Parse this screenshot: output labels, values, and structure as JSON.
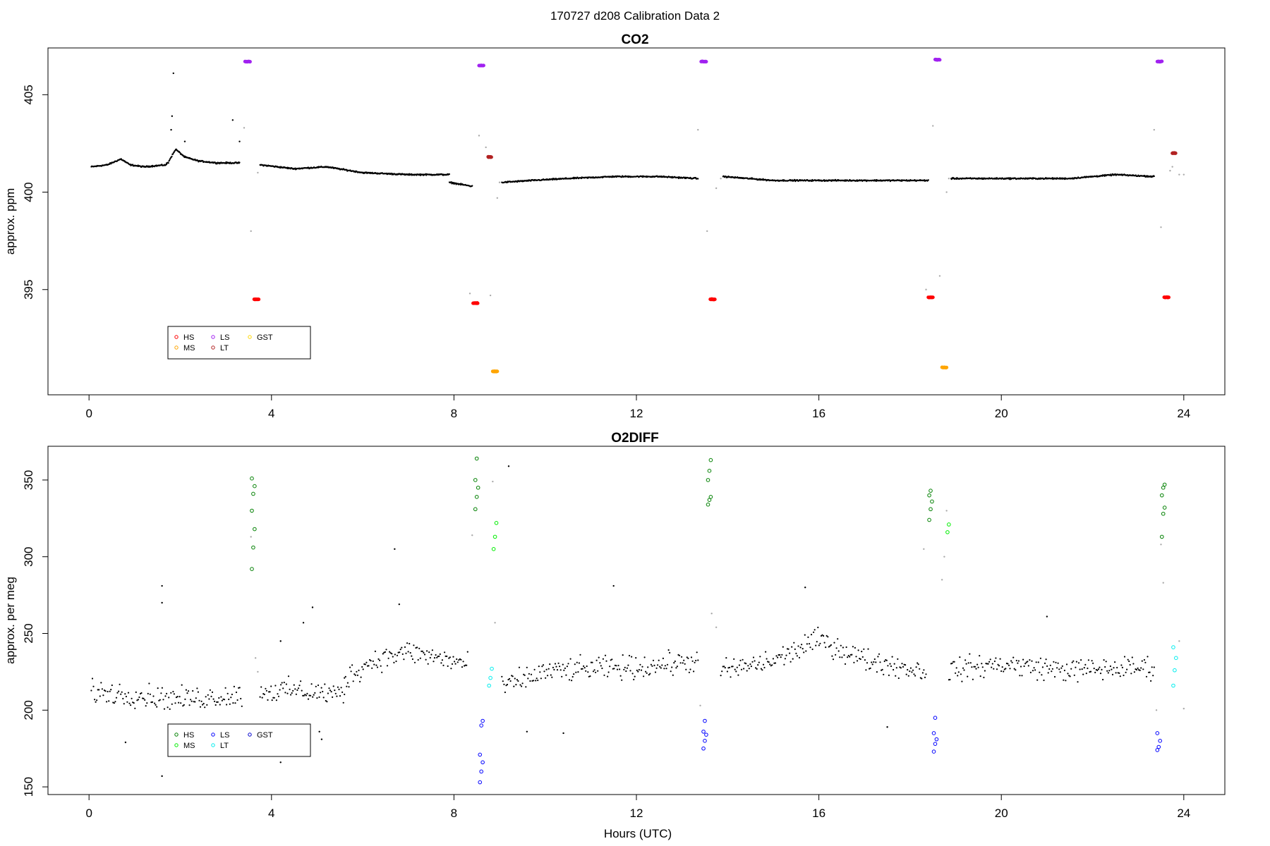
{
  "figure_title": "170727   d208   Calibration Data 2",
  "colors": {
    "data": "#000000",
    "flagged": "#aaaaaa",
    "co2_HS": "#ff0000",
    "co2_MS": "#ffa500",
    "co2_LS": "#a020f0",
    "co2_LT": "#b22222",
    "co2_GST": "#ffd700",
    "o2_HS": "#008000",
    "o2_MS": "#00ee00",
    "o2_LS": "#0000ff",
    "o2_LT": "#00eeee",
    "o2_GST": "#0000cd"
  },
  "chart_data": [
    {
      "type": "scatter",
      "id": "co2",
      "title": "CO2",
      "xlabel": "",
      "ylabel": "approx. ppm",
      "xlim": [
        -0.9,
        24.9
      ],
      "ylim": [
        389.6,
        407.4
      ],
      "xticks": [
        0,
        4,
        8,
        12,
        16,
        20,
        24
      ],
      "yticks": [
        395,
        400,
        405
      ],
      "legend": {
        "placement": "bottom-left",
        "entries": [
          {
            "label": "HS",
            "color": "#ff0000"
          },
          {
            "label": "MS",
            "color": "#ffa500"
          },
          {
            "label": "LS",
            "color": "#a020f0"
          },
          {
            "label": "LT",
            "color": "#b22222"
          },
          {
            "label": "GST",
            "color": "#ffd700"
          }
        ]
      },
      "baseline_segments": [
        {
          "range": [
            0.05,
            1.7
          ],
          "points": [
            [
              0.05,
              401.3
            ],
            [
              0.4,
              401.4
            ],
            [
              0.7,
              401.7
            ],
            [
              0.9,
              401.4
            ],
            [
              1.2,
              401.3
            ],
            [
              1.7,
              401.4
            ]
          ]
        },
        {
          "range": [
            1.7,
            3.3
          ],
          "points": [
            [
              1.75,
              401.6
            ],
            [
              1.9,
              402.2
            ],
            [
              2.1,
              401.8
            ],
            [
              2.4,
              401.6
            ],
            [
              2.8,
              401.5
            ],
            [
              3.3,
              401.5
            ]
          ]
        },
        {
          "range": [
            3.75,
            7.9
          ],
          "points": [
            [
              3.75,
              401.4
            ],
            [
              4.5,
              401.2
            ],
            [
              5.2,
              401.3
            ],
            [
              6.0,
              401.0
            ],
            [
              7.0,
              400.9
            ],
            [
              7.9,
              400.9
            ]
          ]
        },
        {
          "range": [
            7.9,
            8.4
          ],
          "points": [
            [
              7.9,
              400.5
            ],
            [
              8.4,
              400.3
            ]
          ]
        },
        {
          "range": [
            9.05,
            13.35
          ],
          "points": [
            [
              9.05,
              400.5
            ],
            [
              9.7,
              400.6
            ],
            [
              10.5,
              400.7
            ],
            [
              11.5,
              400.8
            ],
            [
              12.5,
              400.8
            ],
            [
              13.35,
              400.7
            ]
          ]
        },
        {
          "range": [
            13.9,
            18.4
          ],
          "points": [
            [
              13.9,
              400.8
            ],
            [
              15.0,
              400.6
            ],
            [
              16.5,
              400.6
            ],
            [
              17.5,
              400.6
            ],
            [
              18.4,
              400.6
            ]
          ]
        },
        {
          "range": [
            18.9,
            23.35
          ],
          "points": [
            [
              18.9,
              400.7
            ],
            [
              20.0,
              400.7
            ],
            [
              21.5,
              400.7
            ],
            [
              22.5,
              400.9
            ],
            [
              23.35,
              400.8
            ]
          ]
        }
      ],
      "calibration_points": [
        {
          "gas": "LS",
          "x_range": [
            3.42,
            3.53
          ],
          "y": 406.7
        },
        {
          "gas": "HS",
          "x_range": [
            3.62,
            3.72
          ],
          "y": 394.5
        },
        {
          "gas": "LS",
          "x_range": [
            8.55,
            8.65
          ],
          "y": 406.5
        },
        {
          "gas": "HS",
          "x_range": [
            8.42,
            8.52
          ],
          "y": 394.3
        },
        {
          "gas": "LT",
          "x_range": [
            8.75,
            8.82
          ],
          "y": 401.8
        },
        {
          "gas": "MS",
          "x_range": [
            8.85,
            8.95
          ],
          "y": 390.8
        },
        {
          "gas": "LS",
          "x_range": [
            13.42,
            13.53
          ],
          "y": 406.7
        },
        {
          "gas": "HS",
          "x_range": [
            13.62,
            13.72
          ],
          "y": 394.5
        },
        {
          "gas": "LS",
          "x_range": [
            18.55,
            18.65
          ],
          "y": 406.8
        },
        {
          "gas": "HS",
          "x_range": [
            18.4,
            18.5
          ],
          "y": 394.6
        },
        {
          "gas": "MS",
          "x_range": [
            18.7,
            18.8
          ],
          "y": 391.0
        },
        {
          "gas": "LS",
          "x_range": [
            23.42,
            23.52
          ],
          "y": 406.7
        },
        {
          "gas": "HS",
          "x_range": [
            23.57,
            23.67
          ],
          "y": 394.6
        },
        {
          "gas": "LT",
          "x_range": [
            23.75,
            23.82
          ],
          "y": 402.0
        }
      ],
      "outliers": [
        {
          "x": 1.85,
          "y": 406.1,
          "flagged": false
        },
        {
          "x": 1.82,
          "y": 403.9,
          "flagged": false
        },
        {
          "x": 1.8,
          "y": 403.2,
          "flagged": false
        },
        {
          "x": 2.1,
          "y": 402.6,
          "flagged": false
        },
        {
          "x": 3.15,
          "y": 403.7,
          "flagged": false
        },
        {
          "x": 3.3,
          "y": 402.6,
          "flagged": false
        },
        {
          "x": 3.4,
          "y": 403.3,
          "flagged": true
        },
        {
          "x": 3.55,
          "y": 398.0,
          "flagged": true
        },
        {
          "x": 3.7,
          "y": 401.0,
          "flagged": true
        },
        {
          "x": 8.35,
          "y": 394.8,
          "flagged": true
        },
        {
          "x": 8.55,
          "y": 402.9,
          "flagged": true
        },
        {
          "x": 8.7,
          "y": 402.3,
          "flagged": true
        },
        {
          "x": 8.8,
          "y": 394.7,
          "flagged": true
        },
        {
          "x": 8.95,
          "y": 399.7,
          "flagged": true
        },
        {
          "x": 9.0,
          "y": 400.5,
          "flagged": true
        },
        {
          "x": 13.35,
          "y": 403.2,
          "flagged": true
        },
        {
          "x": 13.55,
          "y": 398.0,
          "flagged": true
        },
        {
          "x": 13.75,
          "y": 400.2,
          "flagged": true
        },
        {
          "x": 13.85,
          "y": 400.7,
          "flagged": true
        },
        {
          "x": 18.35,
          "y": 395.0,
          "flagged": true
        },
        {
          "x": 18.5,
          "y": 403.4,
          "flagged": true
        },
        {
          "x": 18.65,
          "y": 395.7,
          "flagged": true
        },
        {
          "x": 18.8,
          "y": 400.0,
          "flagged": true
        },
        {
          "x": 18.85,
          "y": 400.7,
          "flagged": true
        },
        {
          "x": 23.35,
          "y": 403.2,
          "flagged": true
        },
        {
          "x": 23.5,
          "y": 398.2,
          "flagged": true
        },
        {
          "x": 23.7,
          "y": 401.1,
          "flagged": true
        },
        {
          "x": 23.75,
          "y": 401.3,
          "flagged": true
        },
        {
          "x": 23.9,
          "y": 400.9,
          "flagged": true
        },
        {
          "x": 24.0,
          "y": 400.9,
          "flagged": true
        }
      ]
    },
    {
      "type": "scatter",
      "id": "o2diff",
      "title": "O2DIFF",
      "xlabel": "Hours (UTC)",
      "ylabel": "approx. per meg",
      "xlim": [
        -0.9,
        24.9
      ],
      "ylim": [
        145,
        372
      ],
      "xticks": [
        0,
        4,
        8,
        12,
        16,
        20,
        24
      ],
      "yticks": [
        150,
        200,
        250,
        300,
        350
      ],
      "legend": {
        "placement": "bottom-left",
        "entries": [
          {
            "label": "HS",
            "color": "#008000"
          },
          {
            "label": "MS",
            "color": "#00ee00"
          },
          {
            "label": "LS",
            "color": "#0000ff"
          },
          {
            "label": "LT",
            "color": "#00eeee"
          },
          {
            "label": "GST",
            "color": "#0000cd"
          }
        ]
      },
      "baseline_segments": [
        {
          "range": [
            0.05,
            3.35
          ],
          "points": [
            [
              0.05,
              212
            ],
            [
              1.0,
              210
            ],
            [
              2.0,
              207
            ],
            [
              3.35,
              210
            ]
          ]
        },
        {
          "range": [
            3.75,
            5.6
          ],
          "points": [
            [
              3.75,
              212
            ],
            [
              4.5,
              213
            ],
            [
              5.6,
              210
            ]
          ]
        },
        {
          "range": [
            5.6,
            8.3
          ],
          "points": [
            [
              5.6,
              220
            ],
            [
              6.2,
              232
            ],
            [
              7.0,
              238
            ],
            [
              8.3,
              230
            ]
          ]
        },
        {
          "range": [
            9.05,
            13.35
          ],
          "points": [
            [
              9.05,
              215
            ],
            [
              10.0,
              225
            ],
            [
              11.0,
              227
            ],
            [
              12.0,
              228
            ],
            [
              13.35,
              232
            ]
          ]
        },
        {
          "range": [
            13.85,
            18.35
          ],
          "points": [
            [
              13.85,
              225
            ],
            [
              15.0,
              232
            ],
            [
              16.0,
              246
            ],
            [
              17.0,
              233
            ],
            [
              18.35,
              225
            ]
          ]
        },
        {
          "range": [
            18.85,
            23.35
          ],
          "points": [
            [
              18.85,
              226
            ],
            [
              20.0,
              230
            ],
            [
              21.5,
              226
            ],
            [
              23.35,
              228
            ]
          ]
        }
      ],
      "calibration_points": [
        {
          "gas": "HS",
          "x": 3.6,
          "ys": [
            292,
            306,
            318,
            330,
            341,
            346,
            351
          ]
        },
        {
          "gas": "HS",
          "x": 8.5,
          "ys": [
            331,
            339,
            345,
            350,
            364
          ]
        },
        {
          "gas": "MS",
          "x": 8.9,
          "ys": [
            305,
            313,
            322
          ]
        },
        {
          "gas": "LS",
          "x": 8.6,
          "ys": [
            153,
            160,
            166,
            171,
            190,
            193
          ]
        },
        {
          "gas": "LT",
          "x": 8.8,
          "ys": [
            216,
            221,
            227
          ]
        },
        {
          "gas": "HS",
          "x": 13.6,
          "ys": [
            334,
            337,
            339,
            350,
            356,
            363
          ]
        },
        {
          "gas": "LS",
          "x": 13.5,
          "ys": [
            175,
            180,
            184,
            186,
            193
          ]
        },
        {
          "gas": "HS",
          "x": 18.45,
          "ys": [
            324,
            331,
            336,
            340,
            343
          ]
        },
        {
          "gas": "MS",
          "x": 18.85,
          "ys": [
            316,
            321
          ]
        },
        {
          "gas": "LS",
          "x": 18.55,
          "ys": [
            173,
            178,
            181,
            185,
            195
          ]
        },
        {
          "gas": "HS",
          "x": 23.55,
          "ys": [
            313,
            328,
            332,
            340,
            345,
            347
          ]
        },
        {
          "gas": "LS",
          "x": 23.45,
          "ys": [
            174,
            176,
            180,
            185
          ]
        },
        {
          "gas": "LT",
          "x": 23.8,
          "ys": [
            216,
            226,
            234,
            241
          ]
        }
      ],
      "outliers": [
        {
          "x": 0.8,
          "y": 179,
          "flagged": false
        },
        {
          "x": 1.6,
          "y": 157,
          "flagged": false
        },
        {
          "x": 1.6,
          "y": 270,
          "flagged": false
        },
        {
          "x": 1.6,
          "y": 281,
          "flagged": false
        },
        {
          "x": 4.2,
          "y": 166,
          "flagged": false
        },
        {
          "x": 4.2,
          "y": 245,
          "flagged": false
        },
        {
          "x": 4.7,
          "y": 257,
          "flagged": false
        },
        {
          "x": 4.9,
          "y": 267,
          "flagged": false
        },
        {
          "x": 5.1,
          "y": 181,
          "flagged": false
        },
        {
          "x": 5.05,
          "y": 186,
          "flagged": false
        },
        {
          "x": 6.7,
          "y": 305,
          "flagged": false
        },
        {
          "x": 6.8,
          "y": 269,
          "flagged": false
        },
        {
          "x": 9.2,
          "y": 359,
          "flagged": false
        },
        {
          "x": 9.6,
          "y": 186,
          "flagged": false
        },
        {
          "x": 10.4,
          "y": 185,
          "flagged": false
        },
        {
          "x": 11.5,
          "y": 281,
          "flagged": false
        },
        {
          "x": 15.7,
          "y": 280,
          "flagged": false
        },
        {
          "x": 17.5,
          "y": 189,
          "flagged": false
        },
        {
          "x": 21.0,
          "y": 261,
          "flagged": false
        },
        {
          "x": 8.4,
          "y": 314,
          "flagged": true
        },
        {
          "x": 8.85,
          "y": 349,
          "flagged": true
        },
        {
          "x": 8.9,
          "y": 257,
          "flagged": true
        },
        {
          "x": 3.55,
          "y": 313,
          "flagged": true
        },
        {
          "x": 3.65,
          "y": 234,
          "flagged": true
        },
        {
          "x": 3.7,
          "y": 225,
          "flagged": true
        },
        {
          "x": 13.4,
          "y": 203,
          "flagged": true
        },
        {
          "x": 13.65,
          "y": 263,
          "flagged": true
        },
        {
          "x": 13.75,
          "y": 254,
          "flagged": true
        },
        {
          "x": 18.3,
          "y": 305,
          "flagged": true
        },
        {
          "x": 18.7,
          "y": 285,
          "flagged": true
        },
        {
          "x": 18.75,
          "y": 300,
          "flagged": true
        },
        {
          "x": 18.8,
          "y": 330,
          "flagged": true
        },
        {
          "x": 23.4,
          "y": 200,
          "flagged": true
        },
        {
          "x": 23.55,
          "y": 283,
          "flagged": true
        },
        {
          "x": 23.5,
          "y": 308,
          "flagged": true
        },
        {
          "x": 23.9,
          "y": 245,
          "flagged": true
        },
        {
          "x": 24.0,
          "y": 201,
          "flagged": true
        }
      ]
    }
  ]
}
